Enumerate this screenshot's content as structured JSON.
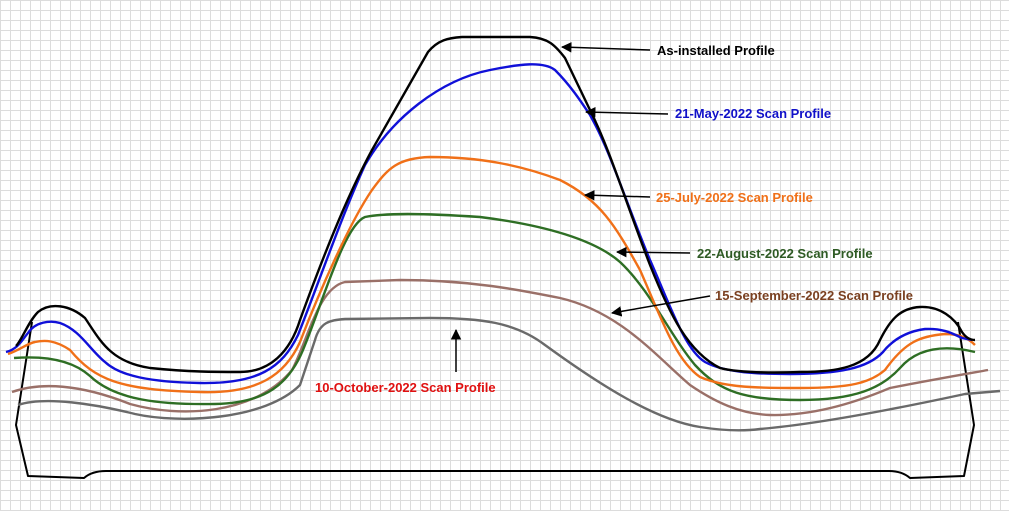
{
  "profiles": [
    {
      "id": "as-installed",
      "label": "As-installed Profile",
      "color": "#000000"
    },
    {
      "id": "may",
      "label": "21-May-2022 Scan Profile",
      "color": "#1010d8"
    },
    {
      "id": "july",
      "label": "25-July-2022 Scan Profile",
      "color": "#f07018"
    },
    {
      "id": "august",
      "label": "22-August-2022 Scan Profile",
      "color": "#2e6e24"
    },
    {
      "id": "september",
      "label": "15-September-2022 Scan Profile",
      "color": "#9a7068"
    },
    {
      "id": "october",
      "label": "10-October-2022 Scan Profile",
      "color": "#6a6a6a"
    }
  ],
  "label_colors": {
    "as-installed": "#000000",
    "may": "#1010c8",
    "july": "#f07018",
    "august": "#2e5a24",
    "september": "#7a4020",
    "october": "#e01010"
  }
}
